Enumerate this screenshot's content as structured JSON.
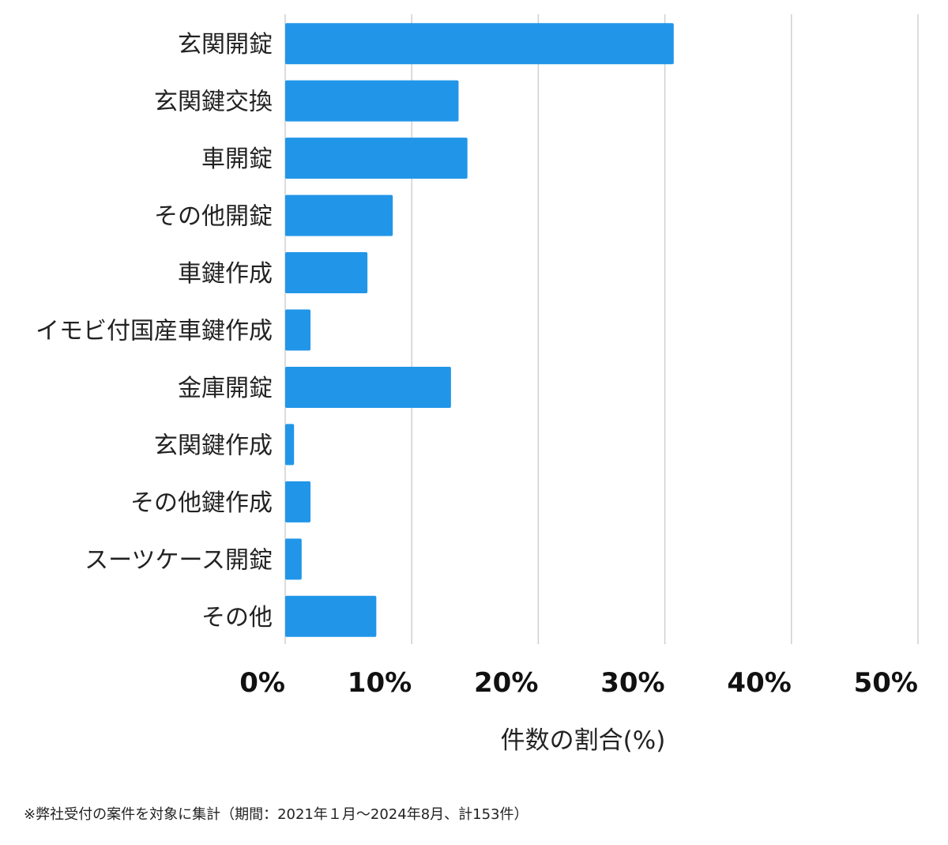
{
  "chart_data": {
    "type": "bar",
    "orientation": "horizontal",
    "categories": [
      "玄関開錠",
      "玄関鍵交換",
      "車開錠",
      "その他開錠",
      "車鍵作成",
      "イモビ付国産車鍵作成",
      "金庫開錠",
      "玄関鍵作成",
      "その他鍵作成",
      "スーツケース開錠",
      "その他"
    ],
    "values": [
      30.7,
      13.7,
      14.4,
      8.5,
      6.5,
      2.0,
      13.1,
      0.7,
      2.0,
      1.3,
      7.2
    ],
    "xlabel": "件数の割合(%)",
    "ylabel": "",
    "xlim": [
      0,
      50
    ],
    "xticks": [
      "0%",
      "10%",
      "20%",
      "30%",
      "40%",
      "50%"
    ],
    "grid": true,
    "bar_color": "#2196E8",
    "grid_color": "#D0D0D0"
  },
  "footnote": "※弊社受付の案件を対象に集計（期間：2021年１月〜2024年8月、計153件）"
}
